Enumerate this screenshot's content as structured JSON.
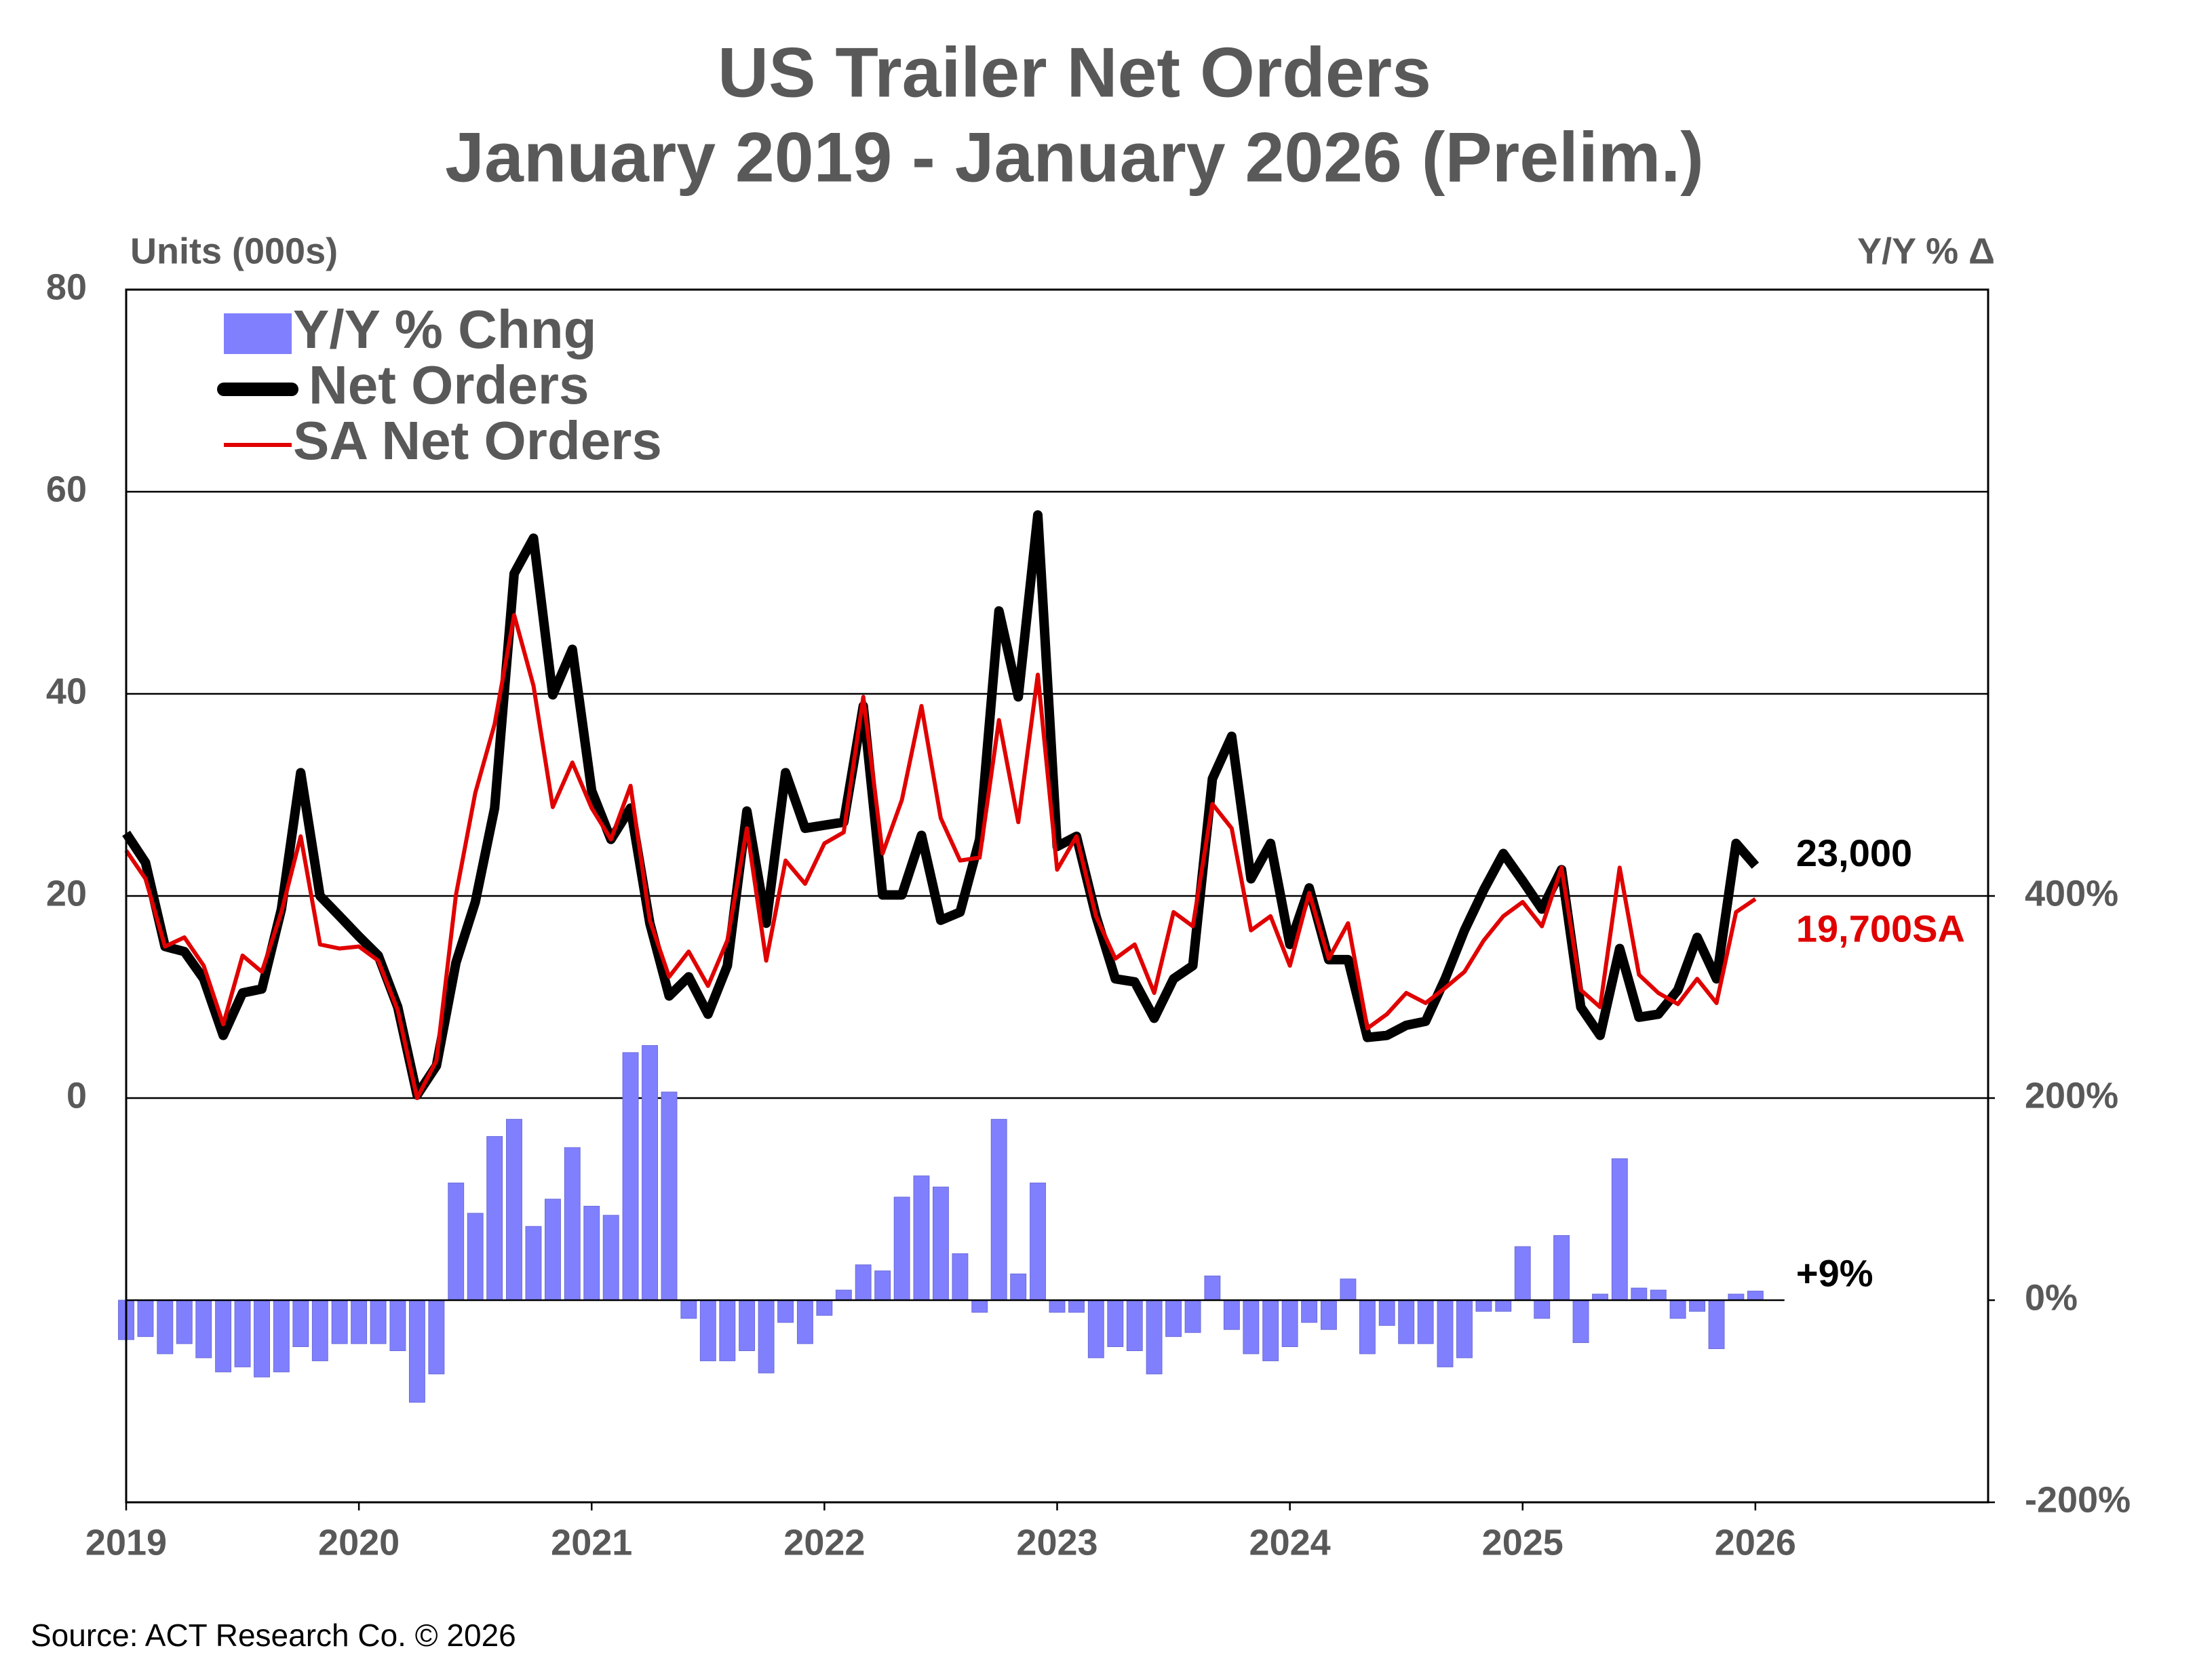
{
  "chart_data": {
    "type": "bar-line",
    "title": "US Trailer Net Orders",
    "subtitle": "January 2019 - January 2026 (Prelim.)",
    "y_label": "Units (000s)",
    "y2_label": "Y/Y % Δ",
    "source": "Source: ACT Research Co. © 2026",
    "x": [
      2019,
      2019.083,
      2019.167,
      2019.25,
      2019.333,
      2019.417,
      2019.5,
      2019.583,
      2019.667,
      2019.75,
      2019.833,
      2019.917,
      2020,
      2020.083,
      2020.167,
      2020.25,
      2020.333,
      2020.417,
      2020.5,
      2020.583,
      2020.667,
      2020.75,
      2020.833,
      2020.917,
      2021,
      2021.083,
      2021.167,
      2021.25,
      2021.333,
      2021.417,
      2021.5,
      2021.583,
      2021.667,
      2021.75,
      2021.833,
      2021.917,
      2022,
      2022.083,
      2022.167,
      2022.25,
      2022.333,
      2022.417,
      2022.5,
      2022.583,
      2022.667,
      2022.75,
      2022.833,
      2022.917,
      2023,
      2023.083,
      2023.167,
      2023.25,
      2023.333,
      2023.417,
      2023.5,
      2023.583,
      2023.667,
      2023.75,
      2023.833,
      2023.917,
      2024,
      2024.083,
      2024.167,
      2024.25,
      2024.333,
      2024.417,
      2024.5,
      2024.583,
      2024.667,
      2024.75,
      2024.833,
      2024.917,
      2025,
      2025.083,
      2025.167,
      2025.25,
      2025.333,
      2025.417,
      2025.5,
      2025.583,
      2025.667,
      2025.75,
      2025.833,
      2025.917,
      2026
    ],
    "xlim": [
      2019,
      2027
    ],
    "xticks": [
      2019,
      2020,
      2021,
      2022,
      2023,
      2024,
      2025,
      2026
    ],
    "ylim": [
      -40,
      80
    ],
    "yticks": [
      0,
      20,
      40,
      60,
      80
    ],
    "y2lim": [
      -200,
      1000
    ],
    "y2ticks": [
      {
        "value": -200,
        "label": "-200%"
      },
      {
        "value": 0,
        "label": "0%"
      },
      {
        "value": 200,
        "label": "200%"
      },
      {
        "value": 400,
        "label": "400%"
      }
    ],
    "grid": true,
    "legend": "upper left",
    "series": [
      {
        "name": "Y/Y % Chng",
        "type": "bar",
        "axis": "y2",
        "color": "#8080ff",
        "end_label": "+9%",
        "values": [
          -39,
          -36,
          -53,
          -43,
          -57,
          -71,
          -66,
          -76,
          -71,
          -46,
          -60,
          -43,
          -43,
          -43,
          -50,
          -101,
          -73,
          116,
          86,
          162,
          179,
          73,
          100,
          151,
          93,
          84,
          245,
          252,
          206,
          -18,
          -60,
          -60,
          -50,
          -72,
          -22,
          -43,
          -15,
          10,
          35,
          29,
          102,
          123,
          112,
          46,
          -12,
          179,
          26,
          116,
          -12,
          -12,
          -57,
          -46,
          -50,
          -73,
          -36,
          -32,
          24,
          -29,
          -53,
          -60,
          -46,
          -22,
          -29,
          21,
          -53,
          -25,
          -43,
          -43,
          -66,
          -57,
          -11,
          -11,
          53,
          -18,
          64,
          -42,
          6,
          140,
          12,
          10,
          -18,
          -11,
          -48,
          6,
          9
        ]
      },
      {
        "name": "Net Orders",
        "type": "line",
        "color": "#000000",
        "end_label": "23,000",
        "values": [
          26.2,
          23.3,
          15,
          14.5,
          11.8,
          6.2,
          10.4,
          10.8,
          18.7,
          32.2,
          20,
          18,
          16,
          14.1,
          9,
          0.3,
          3.2,
          13.4,
          19.4,
          28.7,
          51.9,
          55.4,
          39.9,
          44.4,
          30.4,
          25.6,
          28.7,
          17.3,
          10.1,
          12,
          8.3,
          13.1,
          28.4,
          17.3,
          32.2,
          26.7,
          27,
          27.3,
          38.8,
          20.1,
          20.1,
          26,
          17.6,
          18.4,
          25.6,
          48.2,
          39.7,
          57.7,
          24.9,
          25.9,
          18,
          11.8,
          11.5,
          7.9,
          11.8,
          13.1,
          31.6,
          35.8,
          21.7,
          25.2,
          15.2,
          20.8,
          13.7,
          13.7,
          6,
          6.2,
          7.2,
          7.6,
          11.8,
          16.6,
          20.6,
          24.2,
          21.5,
          18.7,
          22.6,
          9,
          6.2,
          14.8,
          8,
          8.3,
          10.7,
          15.9,
          11.8,
          25.2,
          23
        ]
      },
      {
        "name": "SA Net Orders",
        "type": "line",
        "color": "#e00000",
        "end_label": "19,700SA",
        "values": [
          24.5,
          21.7,
          15,
          15.9,
          13.1,
          7.3,
          14.1,
          12.5,
          18.4,
          25.9,
          15.2,
          14.8,
          15,
          13.6,
          8.7,
          0,
          3.7,
          20.1,
          30.2,
          37,
          47.8,
          40.8,
          28.8,
          33.2,
          28.7,
          25.6,
          30.9,
          17.6,
          12,
          14.5,
          11.1,
          15.6,
          26.7,
          13.6,
          23.5,
          21.2,
          25.2,
          26.3,
          39.7,
          24.2,
          29.5,
          38.8,
          27.7,
          23.5,
          23.8,
          37.4,
          27.3,
          41.9,
          22.6,
          25.9,
          18,
          13.8,
          15.2,
          10.4,
          18.4,
          17,
          29.1,
          26.7,
          16.6,
          18,
          13.1,
          20.3,
          13.8,
          17.3,
          6.9,
          8.3,
          10.4,
          9.4,
          10.9,
          12.5,
          15.6,
          18,
          19.4,
          17,
          22.8,
          10.7,
          9,
          22.8,
          12.2,
          10.4,
          9.3,
          11.8,
          9.4,
          18.4,
          19.7
        ]
      }
    ]
  }
}
